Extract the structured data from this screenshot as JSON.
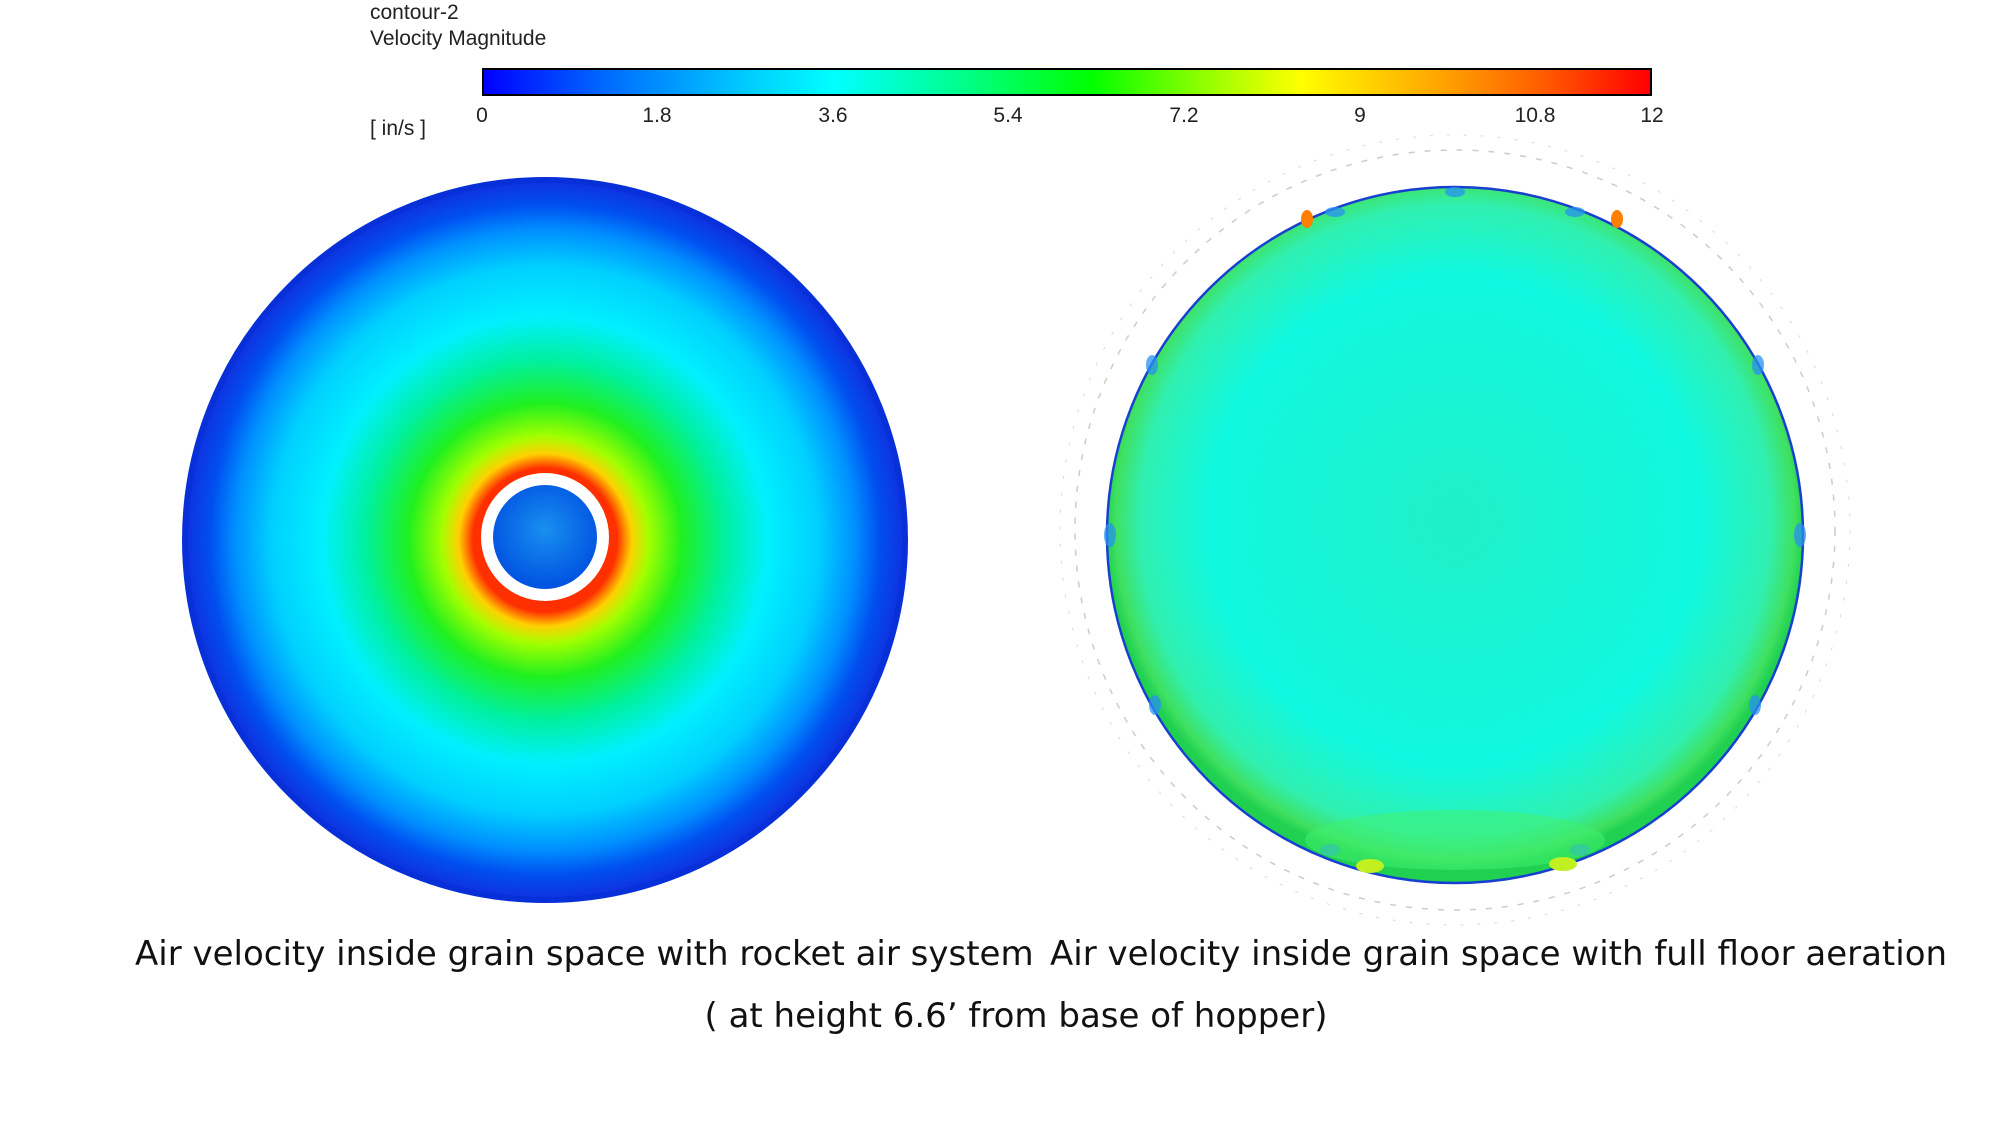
{
  "legend": {
    "name": "contour-2",
    "quantity": "Velocity Magnitude",
    "unit": "[ in/s ]",
    "ticks": [
      "0",
      "1.8",
      "3.6",
      "5.4",
      "7.2",
      "9",
      "10.8",
      "12"
    ],
    "range": [
      0,
      12
    ],
    "colormap": [
      "#0000ff",
      "#00ffff",
      "#00ff00",
      "#ffff00",
      "#ff0000"
    ]
  },
  "plots": {
    "left": {
      "caption": "Air velocity inside grain space with rocket air system",
      "edge_color": "#1030e0",
      "body_color": "#00e8f0",
      "ring_color": "#ffb000",
      "core_color": "#1870e8"
    },
    "right": {
      "caption": "Air velocity inside grain space with full floor aeration",
      "edge_color": "#20d060",
      "body_color": "#10f8e0",
      "hot_spot_color": "#ff8000"
    }
  },
  "note": "( at height 6.6’ from base of hopper)"
}
